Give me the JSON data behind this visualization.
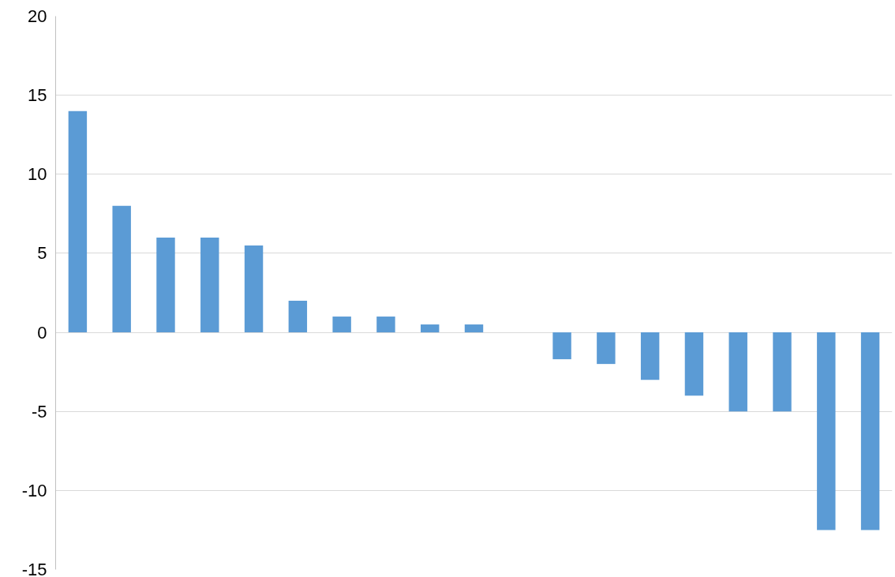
{
  "chart_data": {
    "type": "bar",
    "categories": [
      null,
      null,
      null,
      null,
      null,
      null,
      null,
      null,
      null,
      null,
      null,
      null,
      null,
      null,
      null,
      null,
      null,
      null,
      null
    ],
    "series": [
      {
        "color": "#5b9bd5",
        "values": [
          14,
          8,
          6,
          6,
          5.5,
          2,
          1,
          1,
          0.5,
          0.5,
          null,
          -1.7,
          -2,
          -3,
          -4,
          -5,
          -5,
          -12.5,
          -12.5
        ]
      }
    ],
    "ylim": [
      -15,
      20
    ],
    "yticks": [
      -15,
      -10,
      -5,
      0,
      5,
      10,
      15,
      20
    ],
    "grid": "y",
    "tick_labels": "y"
  }
}
